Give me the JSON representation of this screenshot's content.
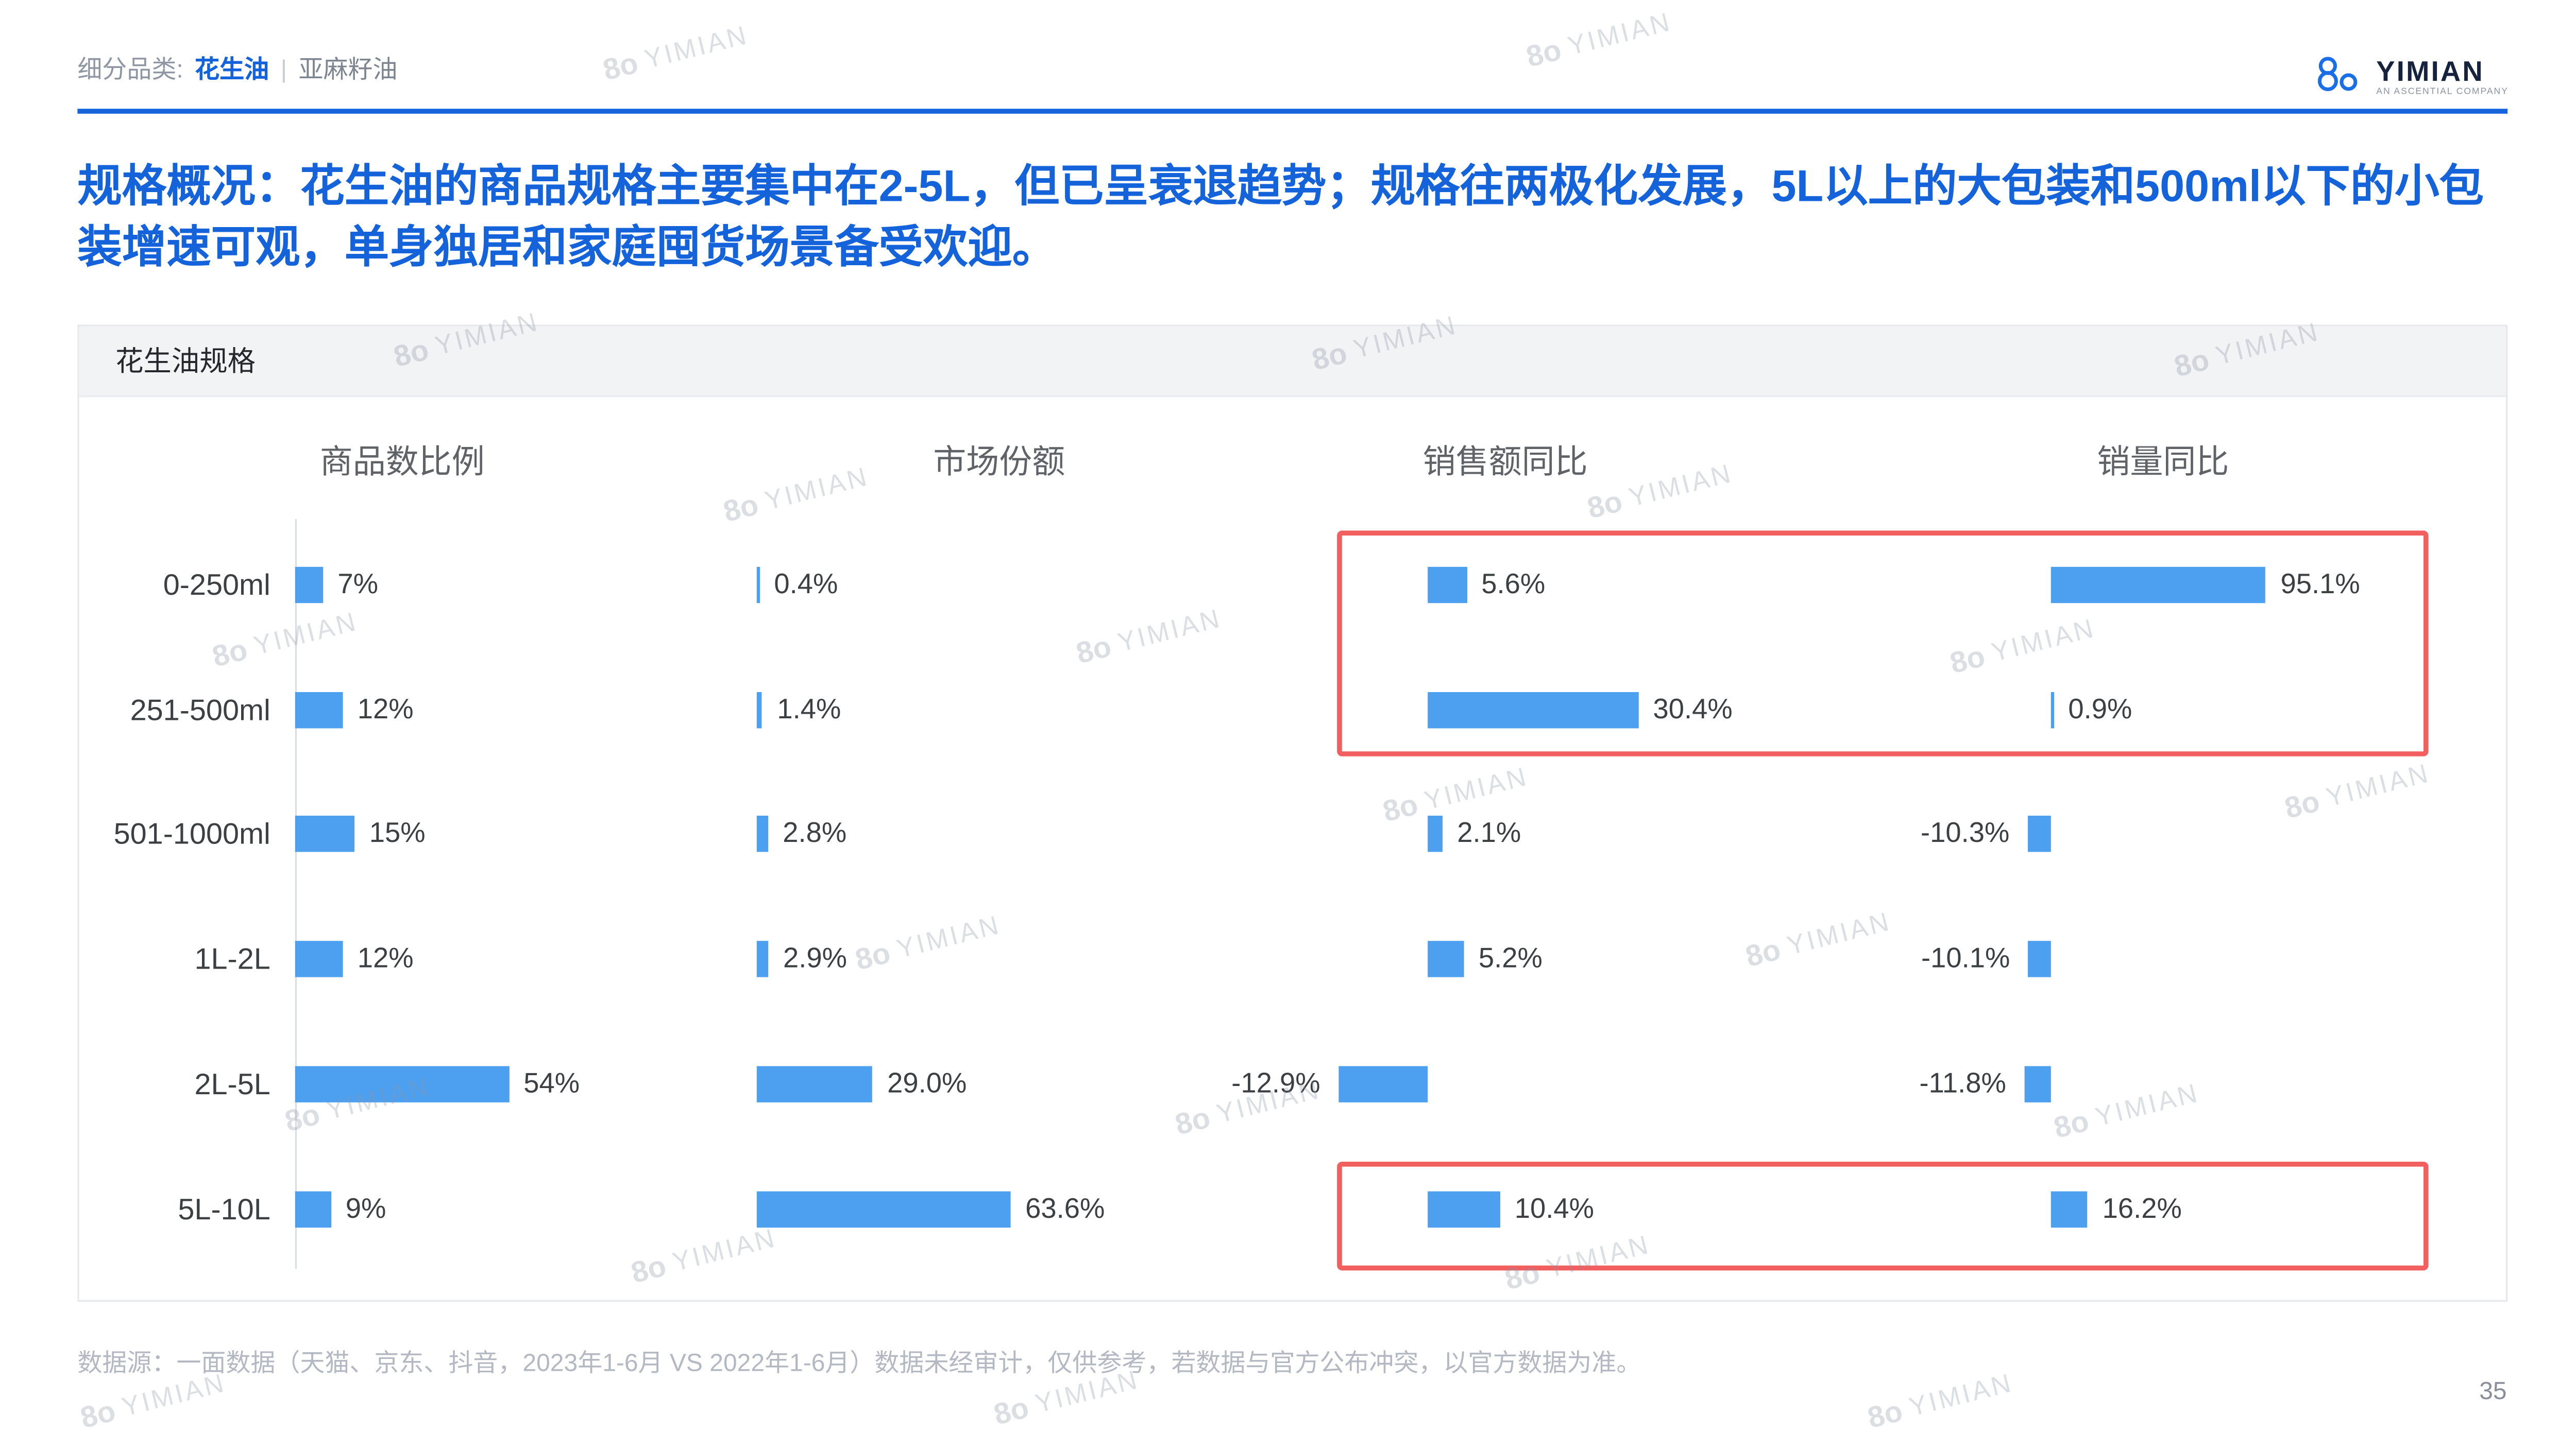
{
  "header": {
    "breadcrumb_label": "细分品类:",
    "category_active": "花生油",
    "separator": "|",
    "category_inactive": "亚麻籽油",
    "logo_text": "YIMIAN",
    "logo_subtext": "AN ASCENTIAL COMPANY"
  },
  "title": "规格概况：花生油的商品规格主要集中在2-5L，但已呈衰退趋势；规格往两极化发展，5L以上的大包装和500ml以下的小包装增速可观，单身独居和家庭囤货场景备受欢迎。",
  "chart_card": {
    "header": "花生油规格"
  },
  "chart_data": {
    "type": "bar",
    "orientation": "horizontal",
    "title": "花生油规格",
    "categories": [
      "0-250ml",
      "251-500ml",
      "501-1000ml",
      "1L-2L",
      "2L-5L",
      "5L-10L"
    ],
    "series": [
      {
        "name": "商品数比例",
        "values": [
          7,
          12,
          15,
          12,
          54,
          9
        ],
        "labels": [
          "7%",
          "12%",
          "15%",
          "12%",
          "54%",
          "9%"
        ]
      },
      {
        "name": "市场份额",
        "values": [
          0.4,
          1.4,
          2.8,
          2.9,
          29.0,
          63.6
        ],
        "labels": [
          "0.4%",
          "1.4%",
          "2.8%",
          "2.9%",
          "29.0%",
          "63.6%"
        ]
      },
      {
        "name": "销售额同比",
        "values": [
          5.6,
          30.4,
          2.1,
          5.2,
          -12.9,
          10.4
        ],
        "labels": [
          "5.6%",
          "30.4%",
          "2.1%",
          "5.2%",
          "-12.9%",
          "10.4%"
        ]
      },
      {
        "name": "销量同比",
        "values": [
          95.1,
          0.9,
          -10.3,
          -10.1,
          -11.8,
          16.2
        ],
        "labels": [
          "95.1%",
          "0.9%",
          "-10.3%",
          "-10.1%",
          "-11.8%",
          "16.2%"
        ]
      }
    ],
    "legend_position": "none",
    "grid": false,
    "highlights": [
      "红框1：0-250ml 与 251-500ml 行的 销售额同比 与 销量同比",
      "红框2：5L-10L 行的 销售额同比 与 销量同比"
    ]
  },
  "footnote": "数据源：一面数据（天猫、京东、抖音，2023年1-6月 VS 2022年1-6月）数据未经审计，仅供参考，若数据与官方公布冲突，以官方数据为准。",
  "page_number": "35",
  "watermark": {
    "glyph": "8o",
    "text": "YIMIAN"
  },
  "colors": {
    "accent_blue": "#1463DB",
    "bar_blue": "#4DA0EF",
    "highlight_red": "#F15F5F"
  }
}
